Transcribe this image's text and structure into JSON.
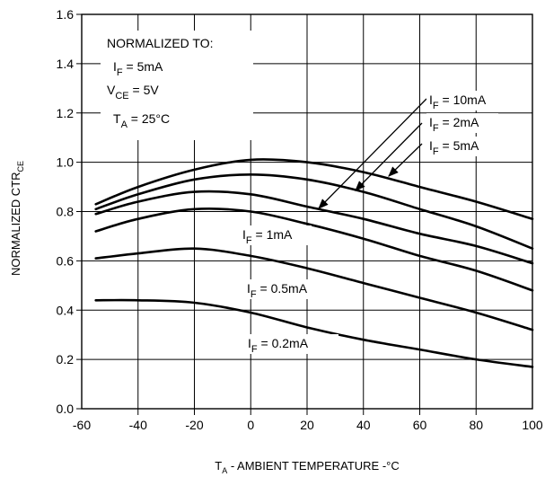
{
  "chart_data": {
    "type": "line",
    "xlabel": {
      "pre": "T",
      "sub": "A",
      "post": " - AMBIENT TEMPERATURE -°C"
    },
    "ylabel": {
      "pre": "NORMALIZED CTR",
      "sub": "CE"
    },
    "xlim": [
      -60,
      100
    ],
    "ylim": [
      0.0,
      1.6
    ],
    "x_ticks": [
      "-60",
      "-40",
      "-20",
      "0",
      "20",
      "40",
      "60",
      "80",
      "100"
    ],
    "y_ticks": [
      "0.0",
      "0.2",
      "0.4",
      "0.6",
      "0.8",
      "1.0",
      "1.2",
      "1.4",
      "1.6"
    ],
    "grid": true,
    "normalization_box": {
      "heading": "NORMALIZED TO:",
      "lines": [
        {
          "pre": "I",
          "sub": "F",
          "post": " = 5mA"
        },
        {
          "pre": "V",
          "sub": "CE",
          "post": " = 5V"
        },
        {
          "pre": "T",
          "sub": "A",
          "post": " = 25°C"
        }
      ]
    },
    "series": [
      {
        "name": "10mA",
        "label": {
          "pre": "I",
          "sub": "F",
          "post": " = 10mA"
        },
        "x": [
          -55,
          -40,
          -20,
          0,
          20,
          40,
          60,
          80,
          100
        ],
        "y": [
          0.83,
          0.9,
          0.97,
          1.01,
          1.0,
          0.96,
          0.9,
          0.84,
          0.77
        ]
      },
      {
        "name": "2mA",
        "label": {
          "pre": "I",
          "sub": "F",
          "post": " = 2mA"
        },
        "x": [
          -55,
          -40,
          -20,
          0,
          20,
          40,
          60,
          80,
          100
        ],
        "y": [
          0.81,
          0.87,
          0.93,
          0.95,
          0.93,
          0.88,
          0.81,
          0.74,
          0.65
        ]
      },
      {
        "name": "5mA",
        "label": {
          "pre": "I",
          "sub": "F",
          "post": " = 5mA"
        },
        "x": [
          -55,
          -40,
          -20,
          0,
          20,
          40,
          60,
          80,
          100
        ],
        "y": [
          0.79,
          0.84,
          0.88,
          0.87,
          0.82,
          0.77,
          0.71,
          0.66,
          0.59
        ]
      },
      {
        "name": "1mA",
        "label": {
          "pre": "I",
          "sub": "F",
          "post": " = 1mA"
        },
        "x": [
          -55,
          -40,
          -20,
          0,
          20,
          40,
          60,
          80,
          100
        ],
        "y": [
          0.72,
          0.77,
          0.81,
          0.8,
          0.75,
          0.69,
          0.62,
          0.56,
          0.48
        ]
      },
      {
        "name": "0.5mA",
        "label": {
          "pre": "I",
          "sub": "F",
          "post": " = 0.5mA"
        },
        "x": [
          -55,
          -40,
          -20,
          0,
          20,
          40,
          60,
          80,
          100
        ],
        "y": [
          0.61,
          0.63,
          0.65,
          0.62,
          0.57,
          0.51,
          0.45,
          0.39,
          0.32
        ]
      },
      {
        "name": "0.2mA",
        "label": {
          "pre": "I",
          "sub": "F",
          "post": " = 0.2mA"
        },
        "x": [
          -55,
          -40,
          -20,
          0,
          20,
          40,
          60,
          80,
          100
        ],
        "y": [
          0.44,
          0.44,
          0.43,
          0.39,
          0.33,
          0.28,
          0.24,
          0.2,
          0.17
        ]
      }
    ]
  }
}
